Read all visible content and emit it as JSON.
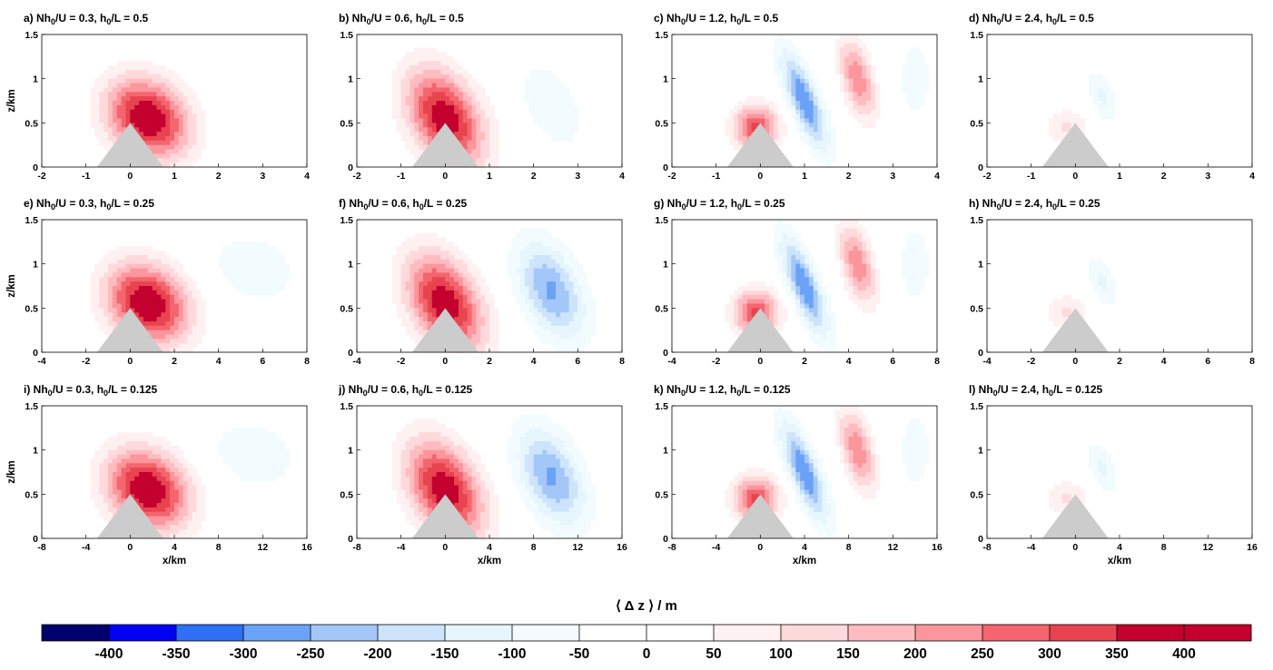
{
  "chart_data": {
    "type": "heatmap",
    "colorbar": {
      "title": "⟨ Δ z ⟩ / m",
      "ticks": [
        "-400",
        "-350",
        "-300",
        "-250",
        "-200",
        "-150",
        "-100",
        "-50",
        "0",
        "50",
        "100",
        "150",
        "200",
        "250",
        "300",
        "350",
        "400"
      ],
      "tick_values": [
        -400,
        -350,
        -300,
        -250,
        -200,
        -150,
        -100,
        -50,
        0,
        50,
        100,
        150,
        200,
        250,
        300,
        350,
        400
      ],
      "colors": [
        "#00006e",
        "#0000f5",
        "#2e6ff5",
        "#6aa2f7",
        "#a4c7fa",
        "#cde4fc",
        "#e7f6fd",
        "#f2fbfe",
        "#ffffff",
        "#ffffff",
        "#fff0f1",
        "#ffd9db",
        "#ffbcc0",
        "#fb969d",
        "#f4656e",
        "#e84450",
        "#c3002f"
      ]
    },
    "ylabel": "z/km",
    "xlabel": "x/km",
    "panels": [
      {
        "id": "a",
        "title_parts": [
          "a)  Nh",
          "0",
          "/U = 0.3, h",
          "0",
          "/L = 0.5"
        ],
        "Nh0_U": 0.3,
        "h0_L": 0.5,
        "xlim": [
          -2,
          4
        ],
        "ylim": [
          0,
          1.5
        ],
        "xticks": [
          "-2",
          "-1",
          "0",
          "1",
          "2",
          "3",
          "4"
        ],
        "yticks": [
          "0",
          "0.5",
          "1",
          "1.5"
        ]
      },
      {
        "id": "b",
        "title_parts": [
          "b)  Nh",
          "0",
          "/U = 0.6, h",
          "0",
          "/L = 0.5"
        ],
        "Nh0_U": 0.6,
        "h0_L": 0.5,
        "xlim": [
          -2,
          4
        ],
        "ylim": [
          0,
          1.5
        ],
        "xticks": [
          "-2",
          "-1",
          "0",
          "1",
          "2",
          "3",
          "4"
        ],
        "yticks": [
          "0",
          "0.5",
          "1",
          "1.5"
        ]
      },
      {
        "id": "c",
        "title_parts": [
          "c)  Nh",
          "0",
          "/U = 1.2, h",
          "0",
          "/L = 0.5"
        ],
        "Nh0_U": 1.2,
        "h0_L": 0.5,
        "xlim": [
          -2,
          4
        ],
        "ylim": [
          0,
          1.5
        ],
        "xticks": [
          "-2",
          "-1",
          "0",
          "1",
          "2",
          "3",
          "4"
        ],
        "yticks": [
          "0",
          "0.5",
          "1",
          "1.5"
        ]
      },
      {
        "id": "d",
        "title_parts": [
          "d)  Nh",
          "0",
          "/U = 2.4, h",
          "0",
          "/L = 0.5"
        ],
        "Nh0_U": 2.4,
        "h0_L": 0.5,
        "xlim": [
          -2,
          4
        ],
        "ylim": [
          0,
          1.5
        ],
        "xticks": [
          "-2",
          "-1",
          "0",
          "1",
          "2",
          "3",
          "4"
        ],
        "yticks": [
          "0",
          "0.5",
          "1",
          "1.5"
        ]
      },
      {
        "id": "e",
        "title_parts": [
          "e)  Nh",
          "0",
          "/U = 0.3, h",
          "0",
          "/L = 0.25"
        ],
        "Nh0_U": 0.3,
        "h0_L": 0.25,
        "xlim": [
          -4,
          8
        ],
        "ylim": [
          0,
          1.5
        ],
        "xticks": [
          "-4",
          "-2",
          "0",
          "2",
          "4",
          "6",
          "8"
        ],
        "yticks": [
          "0",
          "0.5",
          "1",
          "1.5"
        ]
      },
      {
        "id": "f",
        "title_parts": [
          "f)  Nh",
          "0",
          "/U = 0.6, h",
          "0",
          "/L = 0.25"
        ],
        "Nh0_U": 0.6,
        "h0_L": 0.25,
        "xlim": [
          -4,
          8
        ],
        "ylim": [
          0,
          1.5
        ],
        "xticks": [
          "-4",
          "-2",
          "0",
          "2",
          "4",
          "6",
          "8"
        ],
        "yticks": [
          "0",
          "0.5",
          "1",
          "1.5"
        ]
      },
      {
        "id": "g",
        "title_parts": [
          "g)  Nh",
          "0",
          "/U = 1.2, h",
          "0",
          "/L = 0.25"
        ],
        "Nh0_U": 1.2,
        "h0_L": 0.25,
        "xlim": [
          -4,
          8
        ],
        "ylim": [
          0,
          1.5
        ],
        "xticks": [
          "-4",
          "-2",
          "0",
          "2",
          "4",
          "6",
          "8"
        ],
        "yticks": [
          "0",
          "0.5",
          "1",
          "1.5"
        ]
      },
      {
        "id": "h",
        "title_parts": [
          "h)  Nh",
          "0",
          "/U = 2.4, h",
          "0",
          "/L = 0.25"
        ],
        "Nh0_U": 2.4,
        "h0_L": 0.25,
        "xlim": [
          -4,
          8
        ],
        "ylim": [
          0,
          1.5
        ],
        "xticks": [
          "-4",
          "-2",
          "0",
          "2",
          "4",
          "6",
          "8"
        ],
        "yticks": [
          "0",
          "0.5",
          "1",
          "1.5"
        ]
      },
      {
        "id": "i",
        "title_parts": [
          "i)  Nh",
          "0",
          "/U = 0.3, h",
          "0",
          "/L = 0.125"
        ],
        "Nh0_U": 0.3,
        "h0_L": 0.125,
        "xlim": [
          -8,
          16
        ],
        "ylim": [
          0,
          1.5
        ],
        "xticks": [
          "-8",
          "-4",
          "0",
          "4",
          "8",
          "12",
          "16"
        ],
        "yticks": [
          "0",
          "0.5",
          "1",
          "1.5"
        ]
      },
      {
        "id": "j",
        "title_parts": [
          "j)  Nh",
          "0",
          "/U = 0.6, h",
          "0",
          "/L = 0.125"
        ],
        "Nh0_U": 0.6,
        "h0_L": 0.125,
        "xlim": [
          -8,
          16
        ],
        "ylim": [
          0,
          1.5
        ],
        "xticks": [
          "-8",
          "-4",
          "0",
          "4",
          "8",
          "12",
          "16"
        ],
        "yticks": [
          "0",
          "0.5",
          "1",
          "1.5"
        ]
      },
      {
        "id": "k",
        "title_parts": [
          "k)  Nh",
          "0",
          "/U = 1.2, h",
          "0",
          "/L = 0.125"
        ],
        "Nh0_U": 1.2,
        "h0_L": 0.125,
        "xlim": [
          -8,
          16
        ],
        "ylim": [
          0,
          1.5
        ],
        "xticks": [
          "-8",
          "-4",
          "0",
          "4",
          "8",
          "12",
          "16"
        ],
        "yticks": [
          "0",
          "0.5",
          "1",
          "1.5"
        ]
      },
      {
        "id": "l",
        "title_parts": [
          "l)  Nh",
          "0",
          "/U = 2.4, h",
          "0",
          "/L = 0.125"
        ],
        "Nh0_U": 2.4,
        "h0_L": 0.125,
        "xlim": [
          -8,
          16
        ],
        "ylim": [
          0,
          1.5
        ],
        "xticks": [
          "-8",
          "-4",
          "0",
          "4",
          "8",
          "12",
          "16"
        ],
        "yticks": [
          "0",
          "0.5",
          "1",
          "1.5"
        ]
      }
    ]
  }
}
